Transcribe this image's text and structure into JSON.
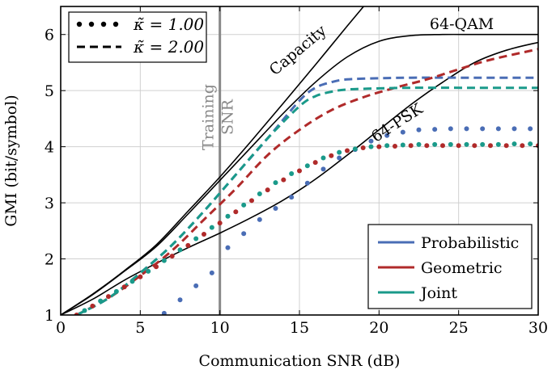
{
  "chart_data": {
    "type": "line",
    "xlabel": "Communication SNR (dB)",
    "ylabel": "GMI (bit/symbol)",
    "xlim": [
      0,
      30
    ],
    "ylim": [
      1,
      6.5
    ],
    "xticks": [
      0,
      5,
      10,
      15,
      20,
      25,
      30
    ],
    "yticks": [
      1,
      2,
      3,
      4,
      5,
      6
    ],
    "grid": true,
    "marker_line": {
      "x": 10,
      "label_line1": "Training",
      "label_line2": "SNR",
      "color": "#888888"
    },
    "curve_labels": [
      {
        "text": "Capacity",
        "x": 15.1,
        "y": 5.65,
        "angle": -40
      },
      {
        "text": "64-QAM",
        "x": 25.2,
        "y": 6.1,
        "angle": 0
      },
      {
        "text": "64-PSK",
        "x": 21.3,
        "y": 4.35,
        "angle": -33
      }
    ],
    "style_legend": [
      {
        "label": "κ̃ = 1.00",
        "dash": "dotted"
      },
      {
        "label": "κ̃ = 2.00",
        "dash": "dashed"
      }
    ],
    "color_legend": [
      {
        "label": "Probabilistic",
        "color": "#4a6db5"
      },
      {
        "label": "Geometric",
        "color": "#b02a2a"
      },
      {
        "label": "Joint",
        "color": "#1a9a8a"
      }
    ],
    "reference_curves": [
      {
        "name": "Capacity",
        "x": [
          0,
          2,
          4,
          6,
          8,
          10,
          12,
          14,
          16,
          18,
          19.5
        ],
        "y": [
          1.0,
          1.37,
          1.79,
          2.25,
          2.85,
          3.46,
          4.11,
          4.78,
          5.46,
          6.15,
          6.66
        ]
      },
      {
        "name": "64-QAM",
        "x": [
          0,
          2,
          4,
          6,
          8,
          10,
          12,
          14,
          16,
          18,
          20,
          22,
          24,
          26,
          28,
          30
        ],
        "y": [
          1.0,
          1.36,
          1.78,
          2.22,
          2.8,
          3.4,
          4.0,
          4.6,
          5.15,
          5.6,
          5.88,
          5.98,
          6.0,
          6.0,
          6.0,
          6.0
        ]
      },
      {
        "name": "64-PSK",
        "x": [
          0,
          2,
          4,
          6,
          8,
          10,
          12,
          14,
          16,
          18,
          20,
          22,
          24,
          26,
          28,
          30
        ],
        "y": [
          1.0,
          1.28,
          1.62,
          1.92,
          2.2,
          2.46,
          2.74,
          3.05,
          3.42,
          3.85,
          4.3,
          4.75,
          5.15,
          5.5,
          5.72,
          5.86
        ]
      }
    ],
    "series": [
      {
        "name": "Probabilistic",
        "style": "dashed",
        "color": "#4a6db5",
        "x": [
          1,
          3,
          5,
          7,
          9,
          11,
          13,
          15,
          16,
          17,
          18,
          20,
          22,
          26,
          30
        ],
        "y": [
          1.0,
          1.3,
          1.75,
          2.25,
          2.85,
          3.5,
          4.15,
          4.82,
          5.05,
          5.15,
          5.2,
          5.22,
          5.23,
          5.23,
          5.23
        ]
      },
      {
        "name": "Geometric",
        "style": "dashed",
        "color": "#b02a2a",
        "x": [
          1,
          3,
          5,
          7,
          9,
          11,
          13,
          15,
          17,
          19,
          21,
          23,
          25,
          27,
          30
        ],
        "y": [
          1.0,
          1.3,
          1.7,
          2.15,
          2.7,
          3.25,
          3.85,
          4.3,
          4.65,
          4.88,
          5.05,
          5.2,
          5.38,
          5.55,
          5.74
        ]
      },
      {
        "name": "Joint",
        "style": "dashed",
        "color": "#1a9a8a",
        "x": [
          1,
          3,
          5,
          7,
          9,
          11,
          13,
          15,
          16,
          17,
          18,
          20,
          22,
          26,
          30
        ],
        "y": [
          1.0,
          1.3,
          1.75,
          2.25,
          2.85,
          3.5,
          4.15,
          4.72,
          4.9,
          4.98,
          5.02,
          5.04,
          5.05,
          5.05,
          5.05
        ]
      },
      {
        "name": "Probabilistic",
        "style": "dotted",
        "color": "#4a6db5",
        "x": [
          6.5,
          7.5,
          8.5,
          9.5,
          10.5,
          11.5,
          12.5,
          13.5,
          14.5,
          15.5,
          16.5,
          17.5,
          18.5,
          19.5,
          20.5,
          21.5,
          22.5,
          23.5,
          24.5,
          25.5,
          26.5,
          27.5,
          28.5,
          29.5
        ],
        "y": [
          1.03,
          1.27,
          1.52,
          1.75,
          2.2,
          2.45,
          2.7,
          2.9,
          3.1,
          3.35,
          3.6,
          3.8,
          3.95,
          4.1,
          4.2,
          4.26,
          4.3,
          4.31,
          4.32,
          4.32,
          4.32,
          4.32,
          4.32,
          4.32
        ]
      },
      {
        "name": "Geometric",
        "style": "dotted",
        "color": "#b02a2a",
        "x": [
          1,
          2,
          3,
          4,
          5,
          6,
          7,
          8,
          9,
          10,
          11,
          12,
          13,
          14,
          15,
          16,
          17,
          18,
          19,
          20,
          21,
          22,
          23,
          24,
          25,
          26,
          27,
          28,
          29,
          30
        ],
        "y": [
          1.0,
          1.16,
          1.33,
          1.5,
          1.68,
          1.86,
          2.05,
          2.24,
          2.44,
          2.64,
          2.84,
          3.04,
          3.23,
          3.41,
          3.57,
          3.72,
          3.84,
          3.93,
          3.98,
          4.0,
          4.01,
          4.02,
          4.02,
          4.02,
          4.02,
          4.02,
          4.02,
          4.02,
          4.02,
          4.02
        ]
      },
      {
        "name": "Joint",
        "style": "dotted",
        "color": "#1a9a8a",
        "x": [
          1.5,
          2.5,
          3.5,
          4.5,
          5.5,
          6.5,
          7.5,
          8.5,
          9.5,
          10.5,
          11.5,
          12.5,
          13.5,
          14.5,
          15.5,
          16.5,
          17.5,
          18.5,
          19.5,
          20.5,
          21.5,
          22.5,
          23.5,
          24.5,
          25.5,
          26.5,
          27.5,
          28.5,
          29.5
        ],
        "y": [
          1.08,
          1.25,
          1.42,
          1.6,
          1.78,
          1.97,
          2.16,
          2.36,
          2.56,
          2.76,
          2.96,
          3.16,
          3.36,
          3.52,
          3.66,
          3.8,
          3.9,
          3.96,
          4.0,
          4.02,
          4.03,
          4.04,
          4.04,
          4.04,
          4.04,
          4.04,
          4.04,
          4.05,
          4.05
        ]
      }
    ]
  }
}
